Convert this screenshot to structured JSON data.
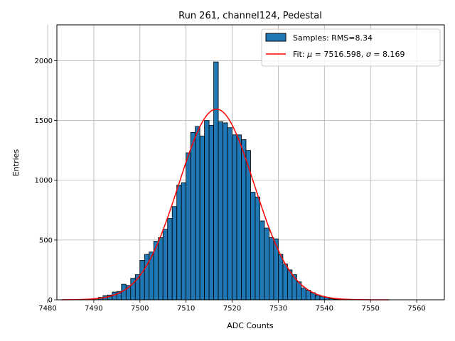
{
  "chart_data": {
    "type": "bar",
    "title": "Run 261, channel124, Pedestal",
    "xlabel": "ADC Counts",
    "ylabel": "Entries",
    "xlim": [
      7482,
      7566
    ],
    "ylim": [
      0,
      2300
    ],
    "xticks": [
      7480,
      7490,
      7500,
      7510,
      7520,
      7530,
      7540,
      7550,
      7560
    ],
    "yticks": [
      0,
      500,
      1000,
      1500,
      2000
    ],
    "grid": true,
    "legend_position": "top-right",
    "bar_color": "#1f77b4",
    "fit_color": "#ff0000",
    "bin_width": 1,
    "histogram": {
      "name": "Samples: RMS=8.34",
      "bins": [
        7489,
        7490,
        7491,
        7492,
        7493,
        7494,
        7495,
        7496,
        7497,
        7498,
        7499,
        7500,
        7501,
        7502,
        7503,
        7504,
        7505,
        7506,
        7507,
        7508,
        7509,
        7510,
        7511,
        7512,
        7513,
        7514,
        7515,
        7516,
        7517,
        7518,
        7519,
        7520,
        7521,
        7522,
        7523,
        7524,
        7525,
        7526,
        7527,
        7528,
        7529,
        7530,
        7531,
        7532,
        7533,
        7534,
        7535,
        7536,
        7537,
        7538,
        7539,
        7540,
        7541,
        7542,
        7543,
        7544,
        7545
      ],
      "values": [
        5,
        10,
        20,
        35,
        40,
        65,
        70,
        130,
        120,
        180,
        210,
        330,
        380,
        400,
        490,
        520,
        590,
        680,
        780,
        960,
        980,
        1230,
        1400,
        1450,
        1370,
        1500,
        1460,
        1990,
        1490,
        1480,
        1440,
        1380,
        1380,
        1340,
        1250,
        900,
        860,
        660,
        600,
        520,
        510,
        380,
        300,
        250,
        210,
        150,
        100,
        80,
        60,
        40,
        30,
        20,
        10,
        6,
        4,
        2,
        1
      ]
    },
    "fit": {
      "name_prefix": "Fit: ",
      "mu_symbol": "μ",
      "mu_value": "= 7516.598, ",
      "sigma_symbol": "σ",
      "sigma_value": "= 8.169",
      "mu": 7516.598,
      "sigma": 8.169,
      "amplitude": 1595,
      "x_range": [
        7483,
        7554
      ]
    }
  }
}
